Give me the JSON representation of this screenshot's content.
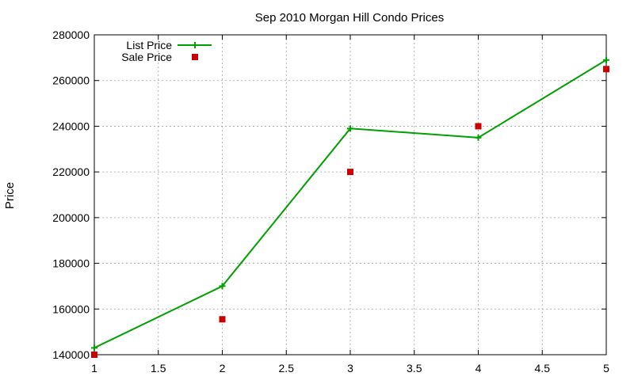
{
  "chart_data": {
    "type": "line",
    "title": "Sep 2010 Morgan Hill Condo Prices",
    "xlabel": "",
    "ylabel": "Price",
    "xlim": [
      1,
      5
    ],
    "ylim": [
      140000,
      280000
    ],
    "x_ticks": [
      1,
      1.5,
      2,
      2.5,
      3,
      3.5,
      4,
      4.5,
      5
    ],
    "y_ticks": [
      140000,
      160000,
      180000,
      200000,
      220000,
      240000,
      260000,
      280000
    ],
    "grid": true,
    "legend_position": "top-left",
    "series": [
      {
        "name": "List Price",
        "style": "line-with-plus-markers",
        "color": "#00a000",
        "x": [
          1,
          2,
          3,
          4,
          5
        ],
        "y": [
          143000,
          170000,
          239000,
          235000,
          269000
        ]
      },
      {
        "name": "Sale Price",
        "style": "square-markers",
        "color": "#cc0000",
        "x": [
          1,
          2,
          3,
          4,
          5
        ],
        "y": [
          140000,
          155500,
          220000,
          240000,
          265000
        ]
      }
    ]
  }
}
